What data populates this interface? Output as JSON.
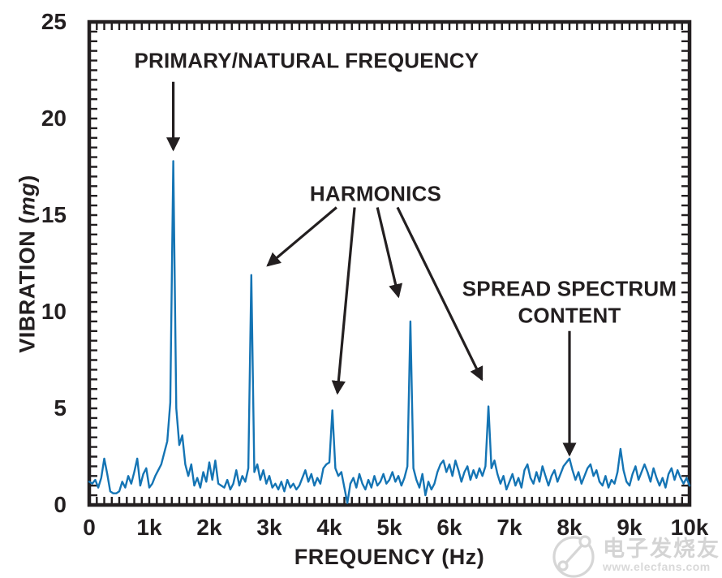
{
  "chart_data": {
    "type": "line",
    "title": "",
    "xlabel": "FREQUENCY (Hz)",
    "ylabel_prefix": "VIBRATION (",
    "ylabel_italic": "mg",
    "ylabel_suffix": ")",
    "xlim": [
      0,
      10000
    ],
    "ylim": [
      0,
      25
    ],
    "grid": false,
    "legend": "none",
    "axis_color": "#231f20",
    "line_color": "#1474b4",
    "x_tick_values": [
      0,
      1000,
      2000,
      3000,
      4000,
      5000,
      6000,
      7000,
      8000,
      9000,
      10000
    ],
    "x_tick_labels": [
      "0",
      "1k",
      "2k",
      "3k",
      "4k",
      "5k",
      "6k",
      "7k",
      "8k",
      "9k",
      "10k"
    ],
    "x_minor_step": 125,
    "y_tick_values": [
      0,
      5,
      10,
      15,
      20,
      25
    ],
    "y_tick_labels": [
      "0",
      "5",
      "10",
      "15",
      "20",
      "25"
    ],
    "y_minor_step": 0.5,
    "peaks": [
      {
        "x": 1400,
        "y": 17.8,
        "label": "primary/natural frequency"
      },
      {
        "x": 2700,
        "y": 11.9,
        "label": "harmonic"
      },
      {
        "x": 4050,
        "y": 4.9,
        "label": "harmonic"
      },
      {
        "x": 5350,
        "y": 9.5,
        "label": "harmonic"
      },
      {
        "x": 6650,
        "y": 5.1,
        "label": "harmonic"
      },
      {
        "x": 8000,
        "y": 2.4,
        "label": "spread spectrum content"
      }
    ],
    "annotations": {
      "primary": {
        "label": "PRIMARY/NATURAL FREQUENCY",
        "text_pos": {
          "x": 3620,
          "y": 23.0
        },
        "arrows": [
          {
            "x1": 1400,
            "y1": 21.9,
            "x2": 1400,
            "y2": 18.4
          }
        ]
      },
      "harmonics": {
        "label": "HARMONICS",
        "text_pos": {
          "x": 4770,
          "y": 16.1
        },
        "arrows": [
          {
            "x1": 4120,
            "y1": 15.4,
            "x2": 2975,
            "y2": 12.4
          },
          {
            "x1": 4420,
            "y1": 15.4,
            "x2": 4135,
            "y2": 5.8
          },
          {
            "x1": 4800,
            "y1": 15.4,
            "x2": 5150,
            "y2": 10.8
          },
          {
            "x1": 5135,
            "y1": 15.4,
            "x2": 6540,
            "y2": 6.5
          }
        ]
      },
      "spread": {
        "label_line1": "SPREAD SPECTRUM",
        "label_line2": "CONTENT",
        "text_pos": {
          "x": 8000,
          "y": 10.5
        },
        "arrows": [
          {
            "x1": 8000,
            "y1": 9.0,
            "x2": 8000,
            "y2": 2.6
          }
        ]
      }
    },
    "series": [
      {
        "name": "vibration spectrum",
        "x_start": 0,
        "x_step": 50,
        "values": [
          1.2,
          1.1,
          1.3,
          0.9,
          1.4,
          2.4,
          1.6,
          0.7,
          0.6,
          0.6,
          0.7,
          1.2,
          0.9,
          1.5,
          1.1,
          1.7,
          2.4,
          1.0,
          1.6,
          1.9,
          0.9,
          1.1,
          1.5,
          1.8,
          2.1,
          2.7,
          3.3,
          5.3,
          17.8,
          5.0,
          3.1,
          3.6,
          2.1,
          1.5,
          2.1,
          1.0,
          1.4,
          0.9,
          1.7,
          1.2,
          2.2,
          1.3,
          2.3,
          1.1,
          1.0,
          0.9,
          1.3,
          0.8,
          1.1,
          1.8,
          1.0,
          1.5,
          1.2,
          1.9,
          11.9,
          1.7,
          2.1,
          1.3,
          1.8,
          1.1,
          1.5,
          0.9,
          1.1,
          0.8,
          1.2,
          0.7,
          1.3,
          0.9,
          1.1,
          0.8,
          1.0,
          1.4,
          1.8,
          1.2,
          1.6,
          1.0,
          1.4,
          1.1,
          1.9,
          2.1,
          2.2,
          4.9,
          1.9,
          1.5,
          1.7,
          0.9,
          0.1,
          1.1,
          1.4,
          0.9,
          1.6,
          1.1,
          0.8,
          1.3,
          0.9,
          1.5,
          1.0,
          1.2,
          1.6,
          1.1,
          1.3,
          1.7,
          1.2,
          1.5,
          1.0,
          1.4,
          2.0,
          9.5,
          1.9,
          1.3,
          0.9,
          1.6,
          0.5,
          1.2,
          0.8,
          1.1,
          1.7,
          2.1,
          2.3,
          1.7,
          2.1,
          1.5,
          2.3,
          1.8,
          1.2,
          1.7,
          2.0,
          1.3,
          1.8,
          1.4,
          1.9,
          1.5,
          2.0,
          5.1,
          1.9,
          2.3,
          1.6,
          1.1,
          1.5,
          0.8,
          1.2,
          1.6,
          1.0,
          1.4,
          0.9,
          1.8,
          2.1,
          1.4,
          1.1,
          1.7,
          1.2,
          2.0,
          1.5,
          1.0,
          1.5,
          1.8,
          1.2,
          1.6,
          2.0,
          2.2,
          2.4,
          1.8,
          1.3,
          1.7,
          1.1,
          1.5,
          1.9,
          2.1,
          1.5,
          1.8,
          1.2,
          1.0,
          1.5,
          0.9,
          1.3,
          1.1,
          1.7,
          2.9,
          1.8,
          1.2,
          1.0,
          1.6,
          2.0,
          1.3,
          1.7,
          2.1,
          1.7,
          1.2,
          1.9,
          1.4,
          1.0,
          1.4,
          0.9,
          1.6,
          1.9,
          1.3,
          1.8,
          1.4,
          1.1,
          1.4,
          1.0
        ]
      }
    ]
  },
  "watermark": {
    "cn_text": "电子发烧友",
    "url_text": "www.elecfans.com",
    "color": "#d2d2d2"
  }
}
